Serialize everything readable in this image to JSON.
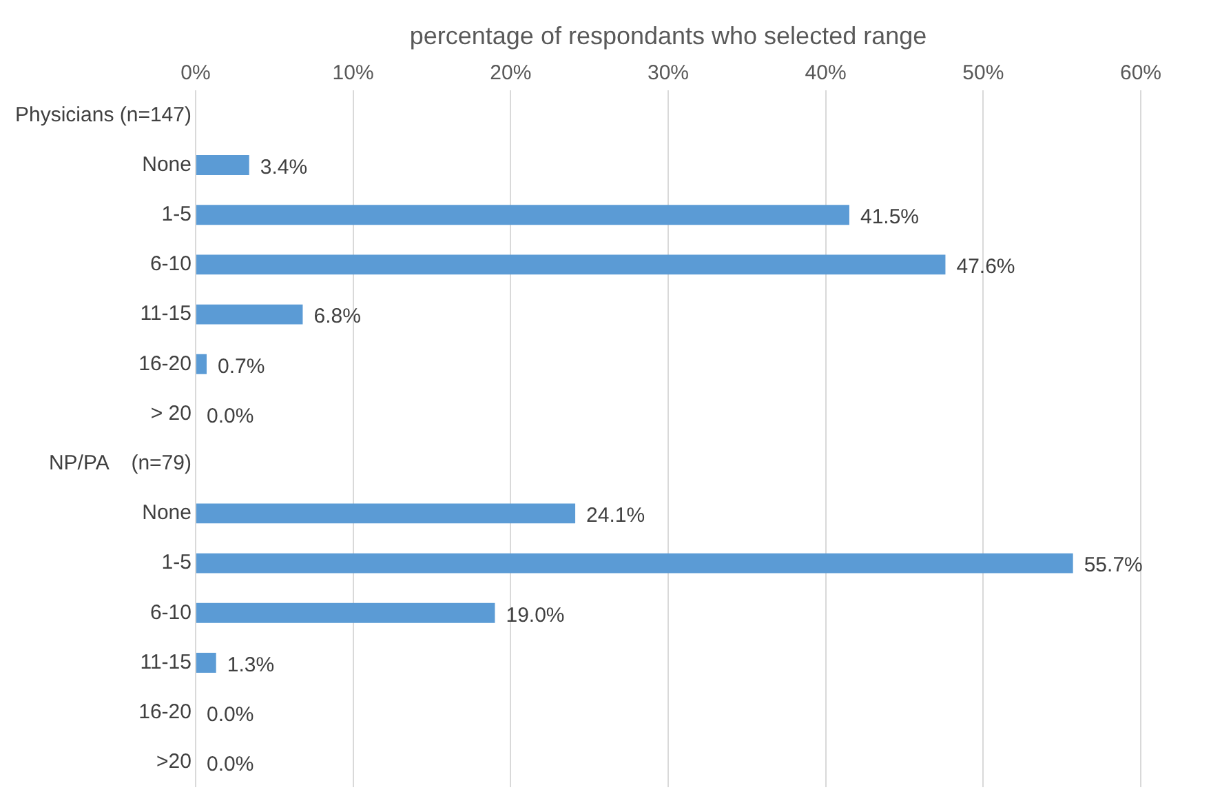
{
  "chart_data": {
    "type": "bar",
    "orientation": "horizontal",
    "xlabel": "percentage of respondants who selected range",
    "categories": [
      "Physicians (n=147)",
      "None",
      "1-5",
      "6-10",
      "11-15",
      "16-20",
      "> 20",
      "NP/PA    (n=79)",
      "None",
      "1-5",
      "6-10",
      "11-15",
      "16-20",
      ">20"
    ],
    "values": [
      null,
      3.4,
      41.5,
      47.6,
      6.8,
      0.7,
      0.0,
      null,
      24.1,
      55.7,
      19.0,
      1.3,
      0.0,
      0.0
    ],
    "value_labels": [
      null,
      "3.4%",
      "41.5%",
      "47.6%",
      "6.8%",
      "0.7%",
      "0.0%",
      null,
      "24.1%",
      "55.7%",
      "19.0%",
      "1.3%",
      "0.0%",
      "0.0%"
    ],
    "color": "#5b9bd5",
    "xlim": [
      0,
      60
    ],
    "xticks": [
      {
        "value": 0,
        "label": "0%"
      },
      {
        "value": 10,
        "label": "10%"
      },
      {
        "value": 20,
        "label": "20%"
      },
      {
        "value": 30,
        "label": "30%"
      },
      {
        "value": 40,
        "label": "40%"
      },
      {
        "value": 50,
        "label": "50%"
      },
      {
        "value": 60,
        "label": "60%"
      }
    ],
    "grid": "x"
  }
}
